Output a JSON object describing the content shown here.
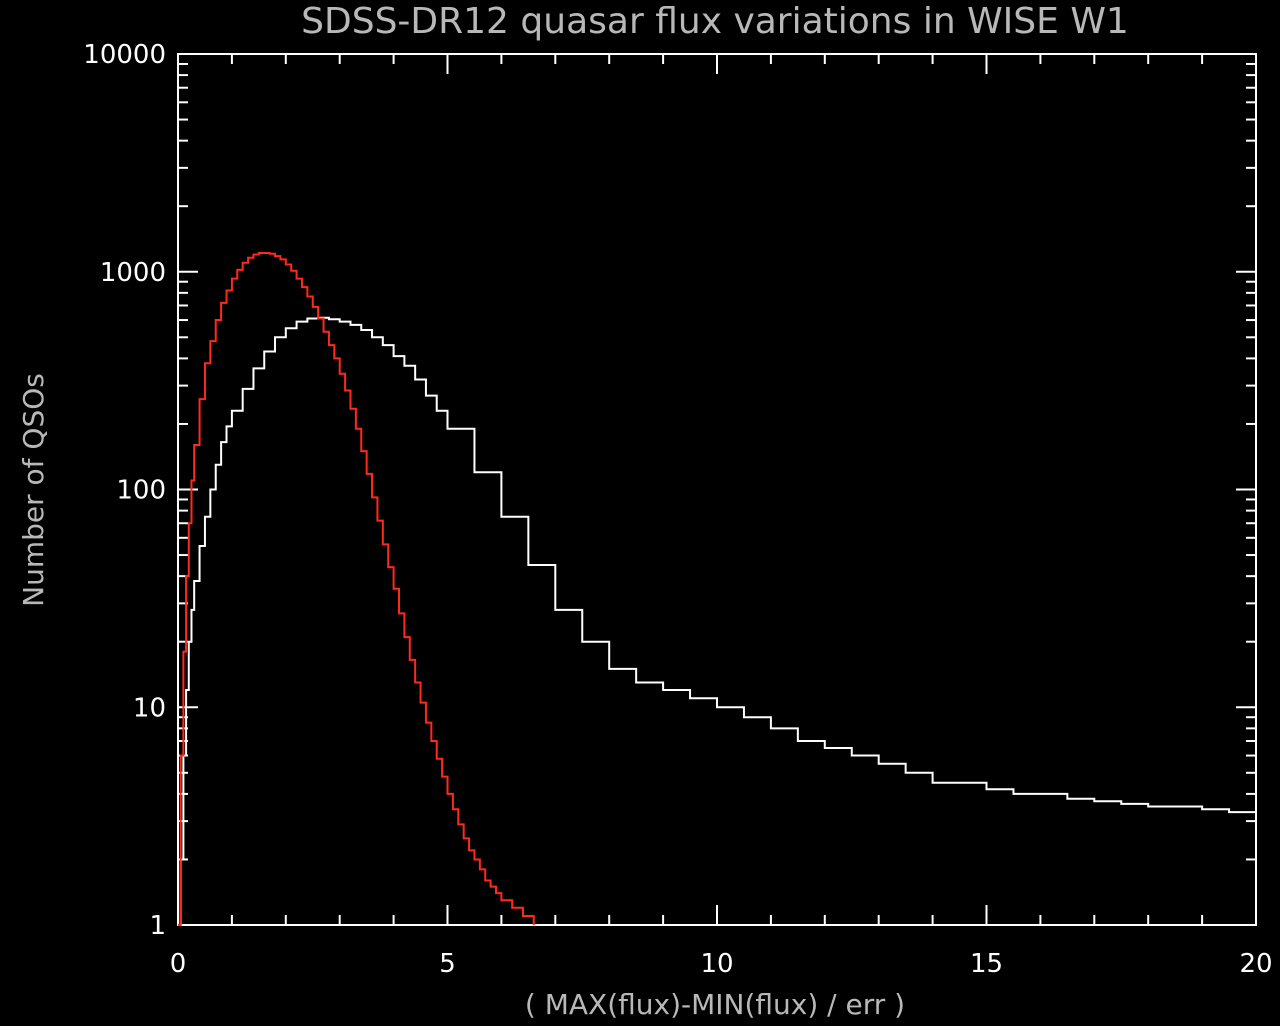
{
  "chart_data": {
    "type": "line",
    "title": "SDSS-DR12 quasar flux variations in WISE W1",
    "xlabel": "( MAX(flux)-MIN(flux) / err )",
    "ylabel": "Number of QSOs",
    "xlim": [
      0,
      20
    ],
    "ylim": [
      1,
      10000
    ],
    "y_scale": "log",
    "x_ticks": [
      "0",
      "5",
      "10",
      "15",
      "20"
    ],
    "y_ticks": [
      "1",
      "10",
      "100",
      "1000",
      "10000"
    ],
    "grid": false,
    "legend": "none",
    "colors": {
      "background": "#000000",
      "axes": "#ffffff",
      "label_text": "#b8b8b8",
      "series_0": "#ffffff",
      "series_1": "#ff2a1a"
    },
    "series": [
      {
        "x": [
          0.0,
          0.05,
          0.1,
          0.15,
          0.2,
          0.25,
          0.3,
          0.4,
          0.5,
          0.6,
          0.7,
          0.8,
          0.9,
          1.0,
          1.2,
          1.4,
          1.6,
          1.8,
          2.0,
          2.2,
          2.4,
          2.6,
          2.8,
          3.0,
          3.2,
          3.4,
          3.6,
          3.8,
          4.0,
          4.2,
          4.4,
          4.6,
          4.8,
          5.0,
          5.5,
          6.0,
          6.5,
          7.0,
          7.5,
          8.0,
          8.5,
          9.0,
          9.5,
          10.0,
          10.5,
          11.0,
          11.5,
          12.0,
          12.5,
          13.0,
          13.5,
          14.0,
          14.5,
          15.0,
          15.5,
          16.0,
          16.5,
          17.0,
          17.5,
          18.0,
          18.5,
          19.0,
          19.5,
          20.0
        ],
        "values": [
          1,
          2,
          6,
          12,
          20,
          28,
          38,
          55,
          75,
          100,
          130,
          165,
          195,
          230,
          290,
          360,
          430,
          500,
          550,
          590,
          610,
          615,
          605,
          590,
          570,
          540,
          500,
          460,
          410,
          370,
          320,
          270,
          230,
          190,
          120,
          75,
          45,
          28,
          20,
          15,
          13,
          12,
          11,
          10,
          9,
          8,
          7,
          6.5,
          6,
          5.5,
          5,
          4.5,
          4.5,
          4.2,
          4,
          4,
          3.8,
          3.7,
          3.6,
          3.5,
          3.5,
          3.4,
          3.3,
          3.2
        ]
      },
      {
        "x": [
          0.0,
          0.05,
          0.1,
          0.15,
          0.2,
          0.25,
          0.3,
          0.4,
          0.5,
          0.6,
          0.7,
          0.8,
          0.9,
          1.0,
          1.1,
          1.2,
          1.3,
          1.4,
          1.5,
          1.6,
          1.7,
          1.8,
          1.9,
          2.0,
          2.1,
          2.2,
          2.3,
          2.4,
          2.5,
          2.6,
          2.7,
          2.8,
          2.9,
          3.0,
          3.1,
          3.2,
          3.3,
          3.4,
          3.5,
          3.6,
          3.7,
          3.8,
          3.9,
          4.0,
          4.1,
          4.2,
          4.3,
          4.4,
          4.5,
          4.6,
          4.7,
          4.8,
          4.9,
          5.0,
          5.1,
          5.2,
          5.3,
          5.4,
          5.5,
          5.6,
          5.7,
          5.8,
          5.9,
          6.0,
          6.2,
          6.4,
          6.6
        ],
        "values": [
          1,
          6,
          18,
          40,
          70,
          110,
          160,
          260,
          380,
          480,
          600,
          720,
          820,
          930,
          1020,
          1100,
          1160,
          1200,
          1220,
          1220,
          1210,
          1180,
          1140,
          1080,
          1010,
          930,
          850,
          770,
          690,
          610,
          530,
          460,
          400,
          340,
          285,
          235,
          190,
          150,
          118,
          92,
          72,
          56,
          44,
          35,
          27,
          21,
          16.5,
          13,
          10.5,
          8.5,
          7,
          5.8,
          4.8,
          4.0,
          3.4,
          2.9,
          2.5,
          2.2,
          2.0,
          1.8,
          1.6,
          1.5,
          1.4,
          1.3,
          1.2,
          1.1,
          1.0
        ]
      }
    ]
  }
}
